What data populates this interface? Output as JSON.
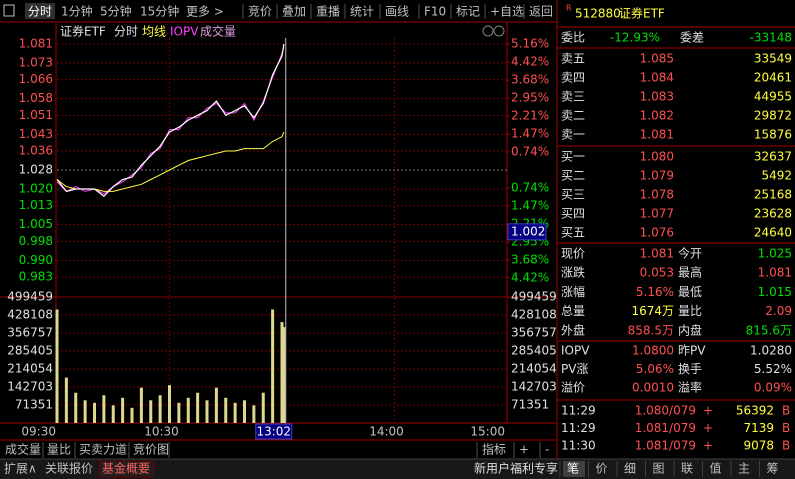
{
  "toolbar": {
    "tabs": [
      "分时",
      "1分钟",
      "5分钟",
      "15分钟",
      "更多 >"
    ],
    "buttons": [
      "竞价",
      "叠加",
      "重播",
      "统计",
      "画线",
      "F10",
      "标记",
      "+自选",
      "返回"
    ]
  },
  "chart_data": [
    {
      "type": "line",
      "title": "证券ETF",
      "x": [
        "09:30",
        "09:35",
        "09:40",
        "09:45",
        "09:50",
        "09:55",
        "10:00",
        "10:05",
        "10:10",
        "10:15",
        "10:20",
        "10:25",
        "10:30",
        "10:35",
        "10:40",
        "10:45",
        "10:50",
        "10:55",
        "11:00",
        "11:05",
        "11:10",
        "11:15",
        "11:20",
        "11:25",
        "11:30",
        "13:01"
      ],
      "series": [
        {
          "name": "分时",
          "color": "#ffffff",
          "values": [
            1.024,
            1.019,
            1.02,
            1.02,
            1.02,
            1.017,
            1.021,
            1.024,
            1.025,
            1.03,
            1.034,
            1.038,
            1.044,
            1.046,
            1.049,
            1.051,
            1.053,
            1.057,
            1.051,
            1.053,
            1.055,
            1.05,
            1.056,
            1.068,
            1.076,
            1.081
          ]
        },
        {
          "name": "均线",
          "color": "#ffff40",
          "values": [
            1.024,
            1.021,
            1.02,
            1.02,
            1.02,
            1.019,
            1.019,
            1.02,
            1.021,
            1.022,
            1.024,
            1.026,
            1.028,
            1.03,
            1.032,
            1.033,
            1.034,
            1.035,
            1.036,
            1.036,
            1.037,
            1.037,
            1.037,
            1.04,
            1.042,
            1.044
          ]
        },
        {
          "name": "IOPV",
          "color": "#ff40ff",
          "values": [
            1.023,
            1.019,
            1.021,
            1.019,
            1.02,
            1.018,
            1.021,
            1.023,
            1.026,
            1.029,
            1.035,
            1.037,
            1.045,
            1.045,
            1.05,
            1.05,
            1.054,
            1.056,
            1.052,
            1.052,
            1.056,
            1.049,
            1.057,
            1.067,
            1.077,
            1.08
          ]
        }
      ],
      "ylim": [
        0.975,
        1.081
      ],
      "yticks": [
        1.081,
        1.073,
        1.066,
        1.058,
        1.051,
        1.043,
        1.036,
        1.028,
        {
          "value": 1.02,
          "label": "1.020"
        },
        1.013,
        1.005,
        0.998,
        {
          "value": 0.99,
          "label": "0.990"
        },
        0.983
      ],
      "y2lim": [
        -5.16,
        5.16
      ],
      "y2ticks": [
        {
          "value": 5.16,
          "label": "5.16%"
        },
        {
          "value": 4.42,
          "label": "4.42%"
        },
        {
          "value": 3.68,
          "label": "3.68%"
        },
        {
          "value": 2.95,
          "label": "2.95%"
        },
        {
          "value": 2.21,
          "label": "2.21%"
        },
        {
          "value": 1.47,
          "label": "1.47%"
        },
        {
          "value": 0.74,
          "label": "0.74%"
        },
        {
          "value": -0.74,
          "label": "0.74%"
        },
        {
          "value": -1.47,
          "label": "1.47%"
        },
        {
          "value": -2.21,
          "label": "2.21%"
        },
        {
          "value": -2.95,
          "label": "2.95%"
        },
        {
          "value": -3.68,
          "label": "3.68%"
        },
        {
          "value": -4.42,
          "label": "4.42%"
        }
      ],
      "xticks": [
        "09:30",
        "10:30",
        "14:00",
        "15:00"
      ],
      "cursor": {
        "x": "13:02",
        "y": 1.002
      },
      "grid": true
    },
    {
      "type": "bar",
      "title": "成交量",
      "color": "#e0d890",
      "x": [
        "09:30",
        "09:35",
        "09:40",
        "09:45",
        "09:50",
        "09:55",
        "10:00",
        "10:05",
        "10:10",
        "10:15",
        "10:20",
        "10:25",
        "10:30",
        "10:35",
        "10:40",
        "10:45",
        "10:50",
        "10:55",
        "11:00",
        "11:05",
        "11:10",
        "11:15",
        "11:20",
        "11:25",
        "11:30",
        "13:01"
      ],
      "values": [
        450000,
        180000,
        120000,
        90000,
        80000,
        110000,
        70000,
        100000,
        60000,
        140000,
        90000,
        110000,
        150000,
        80000,
        100000,
        120000,
        90000,
        140000,
        100000,
        80000,
        90000,
        70000,
        120000,
        450000,
        400000,
        380000
      ],
      "ylim": [
        0,
        499459
      ],
      "yticks": [
        499459,
        428108,
        356757,
        285405,
        214054,
        142703,
        71351
      ],
      "grid": true
    }
  ],
  "bottom_tabs": [
    "成交量",
    "量比",
    "买卖力道",
    "竞价图"
  ],
  "bottom_right": [
    "指标",
    "+",
    "-"
  ],
  "status": {
    "left": [
      "扩展∧",
      "关联报价",
      "基金概要"
    ],
    "promo": "新用户福利专享",
    "right": [
      "笔",
      "价",
      "细",
      "图",
      "联",
      "值",
      "主",
      "筹"
    ]
  },
  "quote": {
    "prefix": "R",
    "code": "512880",
    "name": "证券ETF",
    "committee": [
      {
        "label": "委比",
        "value": "-12.93%",
        "color": "down"
      },
      {
        "label": "委差",
        "value": "-33148",
        "color": "down"
      }
    ],
    "asks": [
      {
        "label": "卖五",
        "price": "1.085",
        "volume": "33549"
      },
      {
        "label": "卖四",
        "price": "1.084",
        "volume": "20461"
      },
      {
        "label": "卖三",
        "price": "1.083",
        "volume": "44955"
      },
      {
        "label": "卖二",
        "price": "1.082",
        "volume": "29872"
      },
      {
        "label": "卖一",
        "price": "1.081",
        "volume": "15876"
      }
    ],
    "bids": [
      {
        "label": "买一",
        "price": "1.080",
        "volume": "32637"
      },
      {
        "label": "买二",
        "price": "1.079",
        "volume": "5492"
      },
      {
        "label": "买三",
        "price": "1.078",
        "volume": "25168"
      },
      {
        "label": "买四",
        "price": "1.077",
        "volume": "23628"
      },
      {
        "label": "买五",
        "price": "1.076",
        "volume": "24640"
      }
    ],
    "stats": [
      [
        {
          "label": "现价",
          "value": "1.081",
          "color": "up"
        },
        {
          "label": "今开",
          "value": "1.025",
          "color": "down"
        }
      ],
      [
        {
          "label": "涨跌",
          "value": "0.053",
          "color": "up"
        },
        {
          "label": "最高",
          "value": "1.081",
          "color": "up"
        }
      ],
      [
        {
          "label": "涨幅",
          "value": "5.16%",
          "color": "up"
        },
        {
          "label": "最低",
          "value": "1.015",
          "color": "down"
        }
      ],
      [
        {
          "label": "总量",
          "value": "1674万",
          "color": "yellow"
        },
        {
          "label": "量比",
          "value": "2.09",
          "color": "up"
        }
      ],
      [
        {
          "label": "外盘",
          "value": "858.5万",
          "color": "up"
        },
        {
          "label": "内盘",
          "value": "815.6万",
          "color": "down"
        }
      ]
    ],
    "iopv": [
      [
        {
          "label": "IOPV",
          "value": "1.0800",
          "color": "up"
        },
        {
          "label": "昨PV",
          "value": "1.0280",
          "color": "flat"
        }
      ],
      [
        {
          "label": "PV涨",
          "value": "5.06%",
          "color": "up"
        },
        {
          "label": "换手",
          "value": "5.52%",
          "color": "flat"
        }
      ],
      [
        {
          "label": "溢价",
          "value": "0.0010",
          "color": "up"
        },
        {
          "label": "溢率",
          "value": "0.09%",
          "color": "up"
        }
      ]
    ],
    "trades": [
      {
        "time": "11:29",
        "price": "1.080/079",
        "flag": "+",
        "volume": "56392",
        "side": "B"
      },
      {
        "time": "11:29",
        "price": "1.081/079",
        "flag": "+",
        "volume": "7139",
        "side": "B"
      },
      {
        "time": "11:30",
        "price": "1.081/079",
        "flag": "+",
        "volume": "9078",
        "side": "B"
      }
    ]
  }
}
